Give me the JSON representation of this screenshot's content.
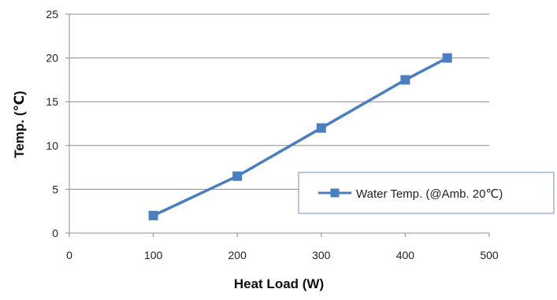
{
  "chart_data": {
    "type": "line",
    "title": "",
    "xlabel": "Heat Load (W)",
    "ylabel": "Temp. (℃)",
    "xlim": [
      0,
      500
    ],
    "ylim": [
      0,
      25
    ],
    "x_ticks": [
      0,
      100,
      200,
      300,
      400,
      500
    ],
    "y_ticks": [
      0,
      5,
      10,
      15,
      20,
      25
    ],
    "grid": "horizontal",
    "legend_position": "bottom-right",
    "series": [
      {
        "name": "Water Temp. (@Amb. 20℃)",
        "color": "#4a7ebf",
        "marker": "square",
        "points": [
          {
            "x": 100,
            "y": 2
          },
          {
            "x": 200,
            "y": 6.5
          },
          {
            "x": 300,
            "y": 12
          },
          {
            "x": 400,
            "y": 17.5
          },
          {
            "x": 450,
            "y": 20
          }
        ]
      }
    ]
  }
}
